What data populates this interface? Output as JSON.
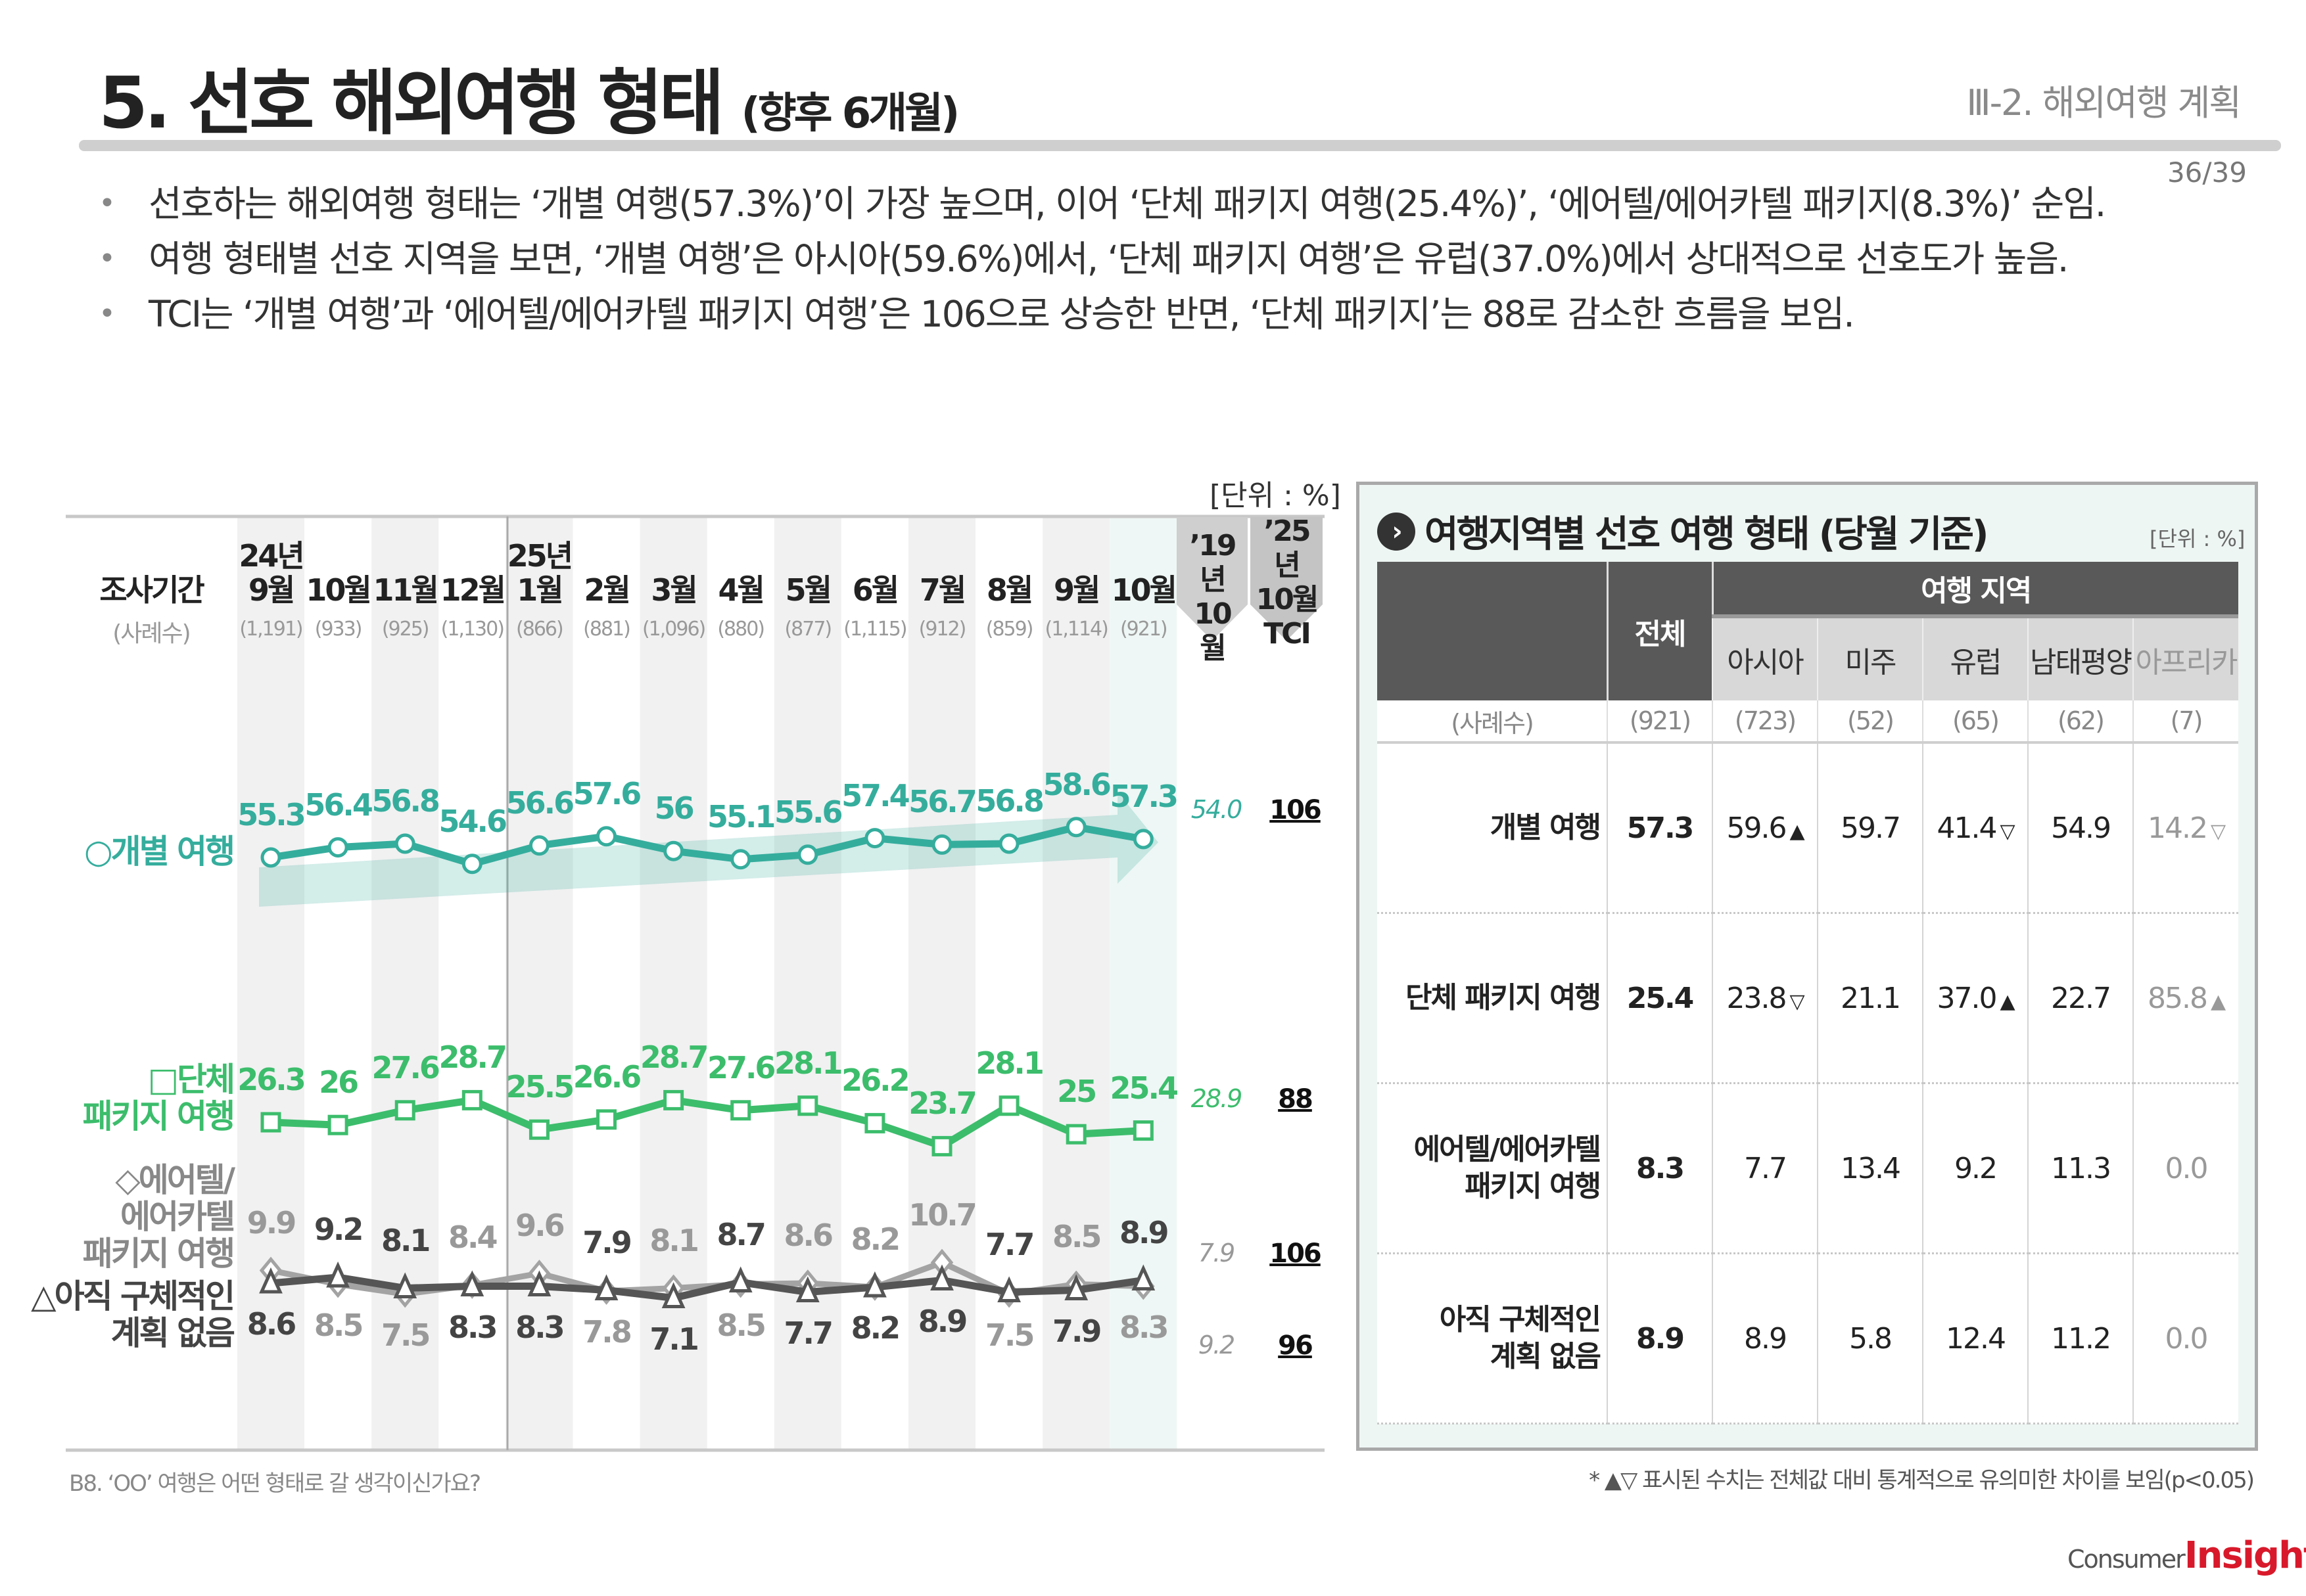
{
  "header": {
    "title": "5. 선호 해외여행 형태",
    "title_sub": "(향후 6개월)",
    "section": "Ⅲ-2. 해외여행 계획",
    "page": "36/39"
  },
  "bullets": [
    "선호하는 해외여행 형태는 ‘개별 여행(57.3%)’이 가장 높으며, 이어 ‘단체 패키지 여행(25.4%)’, ‘에어텔/에어카텔 패키지(8.3%)’ 순임.",
    "여행 형태별 선호 지역을 보면, ‘개별 여행’은 아시아(59.6%)에서, ‘단체 패키지 여행’은 유럽(37.0%)에서 상대적으로 선호도가 높음.",
    "TCI는 ‘개별 여행’과 ‘에어텔/에어카텔 패키지 여행’은 106으로 상승한 반면, ‘단체 패키지’는 88로 감소한 흐름을 보임."
  ],
  "chart_data": {
    "type": "line",
    "unit_label": "[단위 : %]",
    "period_label": "조사기간",
    "sample_label": "(사례수)",
    "year_labels": {
      "0": "24년",
      "4": "25년"
    },
    "categories": [
      "9월",
      "10월",
      "11월",
      "12월",
      "1월",
      "2월",
      "3월",
      "4월",
      "5월",
      "6월",
      "7월",
      "8월",
      "9월",
      "10월"
    ],
    "sample_sizes": [
      "(1,191)",
      "(933)",
      "(925)",
      "(1,130)",
      "(866)",
      "(881)",
      "(1,096)",
      "(880)",
      "(877)",
      "(1,115)",
      "(912)",
      "(859)",
      "(1,114)",
      "(921)"
    ],
    "ref_label": "’19년 10월",
    "tci_label": "’25년 10월 TCI",
    "series": [
      {
        "name": "○개별 여행",
        "marker": "circle",
        "color": "#35ad9d",
        "values": [
          55.3,
          56.4,
          56.8,
          54.6,
          56.6,
          57.6,
          56.0,
          55.1,
          55.6,
          57.4,
          56.7,
          56.8,
          58.6,
          57.3
        ],
        "ref_2019": "54.0",
        "tci": "106"
      },
      {
        "name": "□단체 패키지 여행",
        "marker": "square",
        "color": "#3cbd6c",
        "values": [
          26.3,
          26.0,
          27.6,
          28.7,
          25.5,
          26.6,
          28.7,
          27.6,
          28.1,
          26.2,
          23.7,
          28.1,
          25.0,
          25.4
        ],
        "ref_2019": "28.9",
        "tci": "88"
      },
      {
        "name": "◇에어텔/에어카텔 패키지 여행",
        "marker": "diamond",
        "color": "#a3a3a3",
        "values": [
          9.9,
          8.5,
          7.5,
          8.4,
          9.6,
          7.8,
          8.1,
          8.5,
          8.6,
          8.2,
          10.7,
          7.5,
          8.5,
          8.3
        ],
        "ref_2019": "7.9",
        "tci": "106"
      },
      {
        "name": "△아직 구체적인 계획 없음",
        "marker": "triangle",
        "color": "#555555",
        "values": [
          8.6,
          9.2,
          8.1,
          8.3,
          8.3,
          7.9,
          7.1,
          8.7,
          7.7,
          8.2,
          8.9,
          7.7,
          7.9,
          8.9
        ],
        "ref_2019": "9.2",
        "tci": "96"
      }
    ],
    "series_label_lines": [
      [
        "○개별 여행"
      ],
      [
        "□단체",
        "패키지 여행"
      ],
      [
        "◇에어텔/",
        "에어카텔",
        "패키지 여행"
      ],
      [
        "△아직 구체적인",
        "계획 없음"
      ]
    ],
    "trend_arrow": "rising trend for 개별 여행",
    "grid": false
  },
  "question": "B8. ‘OO’ 여행은 어떤 형태로 갈 생각이신가요?",
  "panel": {
    "title": "여행지역별 선호 여행 형태 (당월 기준)",
    "unit": "[단위 : %]",
    "icon": "chevron-right-circle-icon",
    "total_header": "전체",
    "region_header": "여행 지역",
    "regions": [
      "아시아",
      "미주",
      "유럽",
      "남태평양",
      "아프리카"
    ],
    "sample_label": "(사례수)",
    "samples": [
      "(921)",
      "(723)",
      "(52)",
      "(65)",
      "(62)",
      "(7)"
    ],
    "rows": [
      {
        "label": [
          "개별 여행"
        ],
        "cells": [
          {
            "v": "57.3"
          },
          {
            "v": "59.6",
            "s": "▲"
          },
          {
            "v": "59.7"
          },
          {
            "v": "41.4",
            "s": "▽"
          },
          {
            "v": "54.9"
          },
          {
            "v": "14.2",
            "s": "▽"
          }
        ]
      },
      {
        "label": [
          "단체 패키지 여행"
        ],
        "cells": [
          {
            "v": "25.4"
          },
          {
            "v": "23.8",
            "s": "▽"
          },
          {
            "v": "21.1"
          },
          {
            "v": "37.0",
            "s": "▲"
          },
          {
            "v": "22.7"
          },
          {
            "v": "85.8",
            "s": "▲"
          }
        ]
      },
      {
        "label": [
          "에어텔/에어카텔",
          "패키지 여행"
        ],
        "cells": [
          {
            "v": "8.3"
          },
          {
            "v": "7.7"
          },
          {
            "v": "13.4"
          },
          {
            "v": "9.2"
          },
          {
            "v": "11.3"
          },
          {
            "v": "0.0"
          }
        ]
      },
      {
        "label": [
          "아직 구체적인",
          "계획 없음"
        ],
        "cells": [
          {
            "v": "8.9"
          },
          {
            "v": "8.9"
          },
          {
            "v": "5.8"
          },
          {
            "v": "12.4"
          },
          {
            "v": "11.2"
          },
          {
            "v": "0.0"
          }
        ]
      }
    ],
    "note": "* ▲▽ 표시된 수치는 전체값 대비 통계적으로 유의미한 차이를 보임(p<0.05)"
  },
  "logo": {
    "consumer": "Consumer",
    "insight": "Insight"
  },
  "colors": {
    "teal": "#35ad9d",
    "green": "#3cbd6c",
    "band": "#f1f1f1",
    "current_band": "#eef7f5",
    "panel_bg": "#eef6f4",
    "header_dark": "#595959",
    "logo_red": "#d8192b"
  }
}
